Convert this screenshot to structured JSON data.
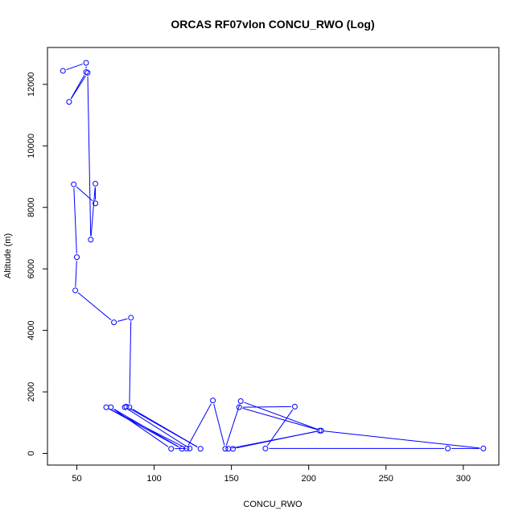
{
  "chart_data": {
    "type": "line",
    "title": "ORCAS RF07vlon CONCU_RWO (Log)",
    "xlabel": "CONCU_RWO",
    "ylabel": "Altitude (m)",
    "xlim": [
      31,
      323
    ],
    "ylim": [
      -380,
      13200
    ],
    "xticks": [
      50,
      100,
      150,
      200,
      250,
      300
    ],
    "yticks": [
      0,
      2000,
      4000,
      6000,
      8000,
      10000,
      12000
    ],
    "grid": false,
    "legend": "none",
    "color": "#0000ff",
    "series": [
      {
        "x": [
          41,
          56,
          56,
          45,
          57,
          59,
          62,
          62,
          48,
          50,
          49,
          74,
          85,
          84,
          130,
          82,
          81,
          123,
          111,
          72,
          118,
          69,
          121,
          138,
          146,
          156,
          208,
          155,
          191,
          172,
          290,
          313,
          207,
          151,
          148,
          208
        ],
        "y": [
          12440,
          12700,
          12400,
          11430,
          12380,
          6950,
          8770,
          8130,
          8750,
          6380,
          5300,
          4260,
          4410,
          1500,
          150,
          1520,
          1500,
          160,
          150,
          1500,
          150,
          1500,
          160,
          1720,
          150,
          1700,
          740,
          1500,
          1520,
          160,
          160,
          160,
          740,
          150,
          150,
          740
        ]
      }
    ]
  }
}
